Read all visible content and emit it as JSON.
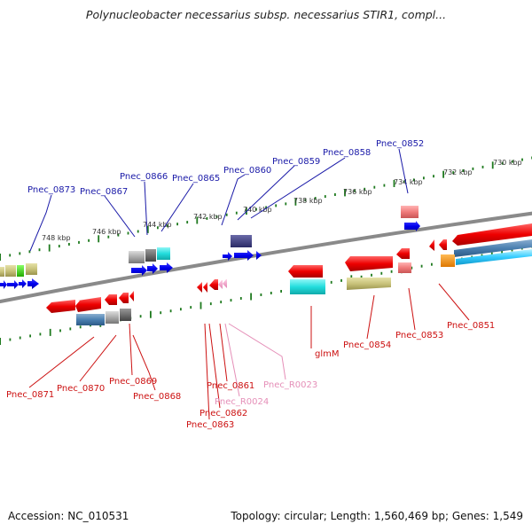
{
  "title": "Polynucleobacter necessarius subsp. necessarius STIR1, compl...",
  "footer": {
    "accession": "Accession: NC_010531",
    "summary": "Topology: circular; Length: 1,560,469 bp; Genes: 1,549"
  },
  "scale_ticks": [
    "730 kbp",
    "732 kbp",
    "734 kbp",
    "736 kbp",
    "738 kbp",
    "740 kbp",
    "742 kbp",
    "744 kbp",
    "746 kbp",
    "748 kbp"
  ],
  "colors": {
    "backbone": "#7a7a7a",
    "tick": "#1f7a1f",
    "label_top": "#1a1aa8",
    "label_bottom": "#cc1111",
    "label_rna": "#e58fb8"
  },
  "top_labels": [
    {
      "name": "Pnec_0873"
    },
    {
      "name": "Pnec_0867"
    },
    {
      "name": "Pnec_0866"
    },
    {
      "name": "Pnec_0865"
    },
    {
      "name": "Pnec_0860"
    },
    {
      "name": "Pnec_0859"
    },
    {
      "name": "Pnec_0858"
    },
    {
      "name": "Pnec_0852"
    }
  ],
  "bottom_labels": [
    {
      "name": "Pnec_0871"
    },
    {
      "name": "Pnec_0870"
    },
    {
      "name": "Pnec_0869"
    },
    {
      "name": "Pnec_0868"
    },
    {
      "name": "Pnec_0861"
    },
    {
      "name": "Pnec_0862"
    },
    {
      "name": "Pnec_0863"
    },
    {
      "name": "Pnec_R0024"
    },
    {
      "name": "Pnec_R0023"
    },
    {
      "name": "glmM"
    },
    {
      "name": "Pnec_0854"
    },
    {
      "name": "Pnec_0853"
    },
    {
      "name": "Pnec_0851"
    }
  ]
}
